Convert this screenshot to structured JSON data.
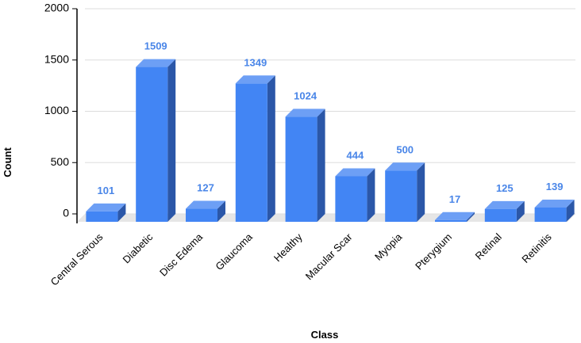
{
  "chart_data": {
    "type": "bar3d",
    "x_label": "Class",
    "y_label": "Count",
    "categories": [
      "Central Serous",
      "Diabetic",
      "Disc Edema",
      "Glaucoma",
      "Healthy",
      "Macular Scar",
      "Myopia",
      "Pterygium",
      "Retinal",
      "Retinitis"
    ],
    "values": [
      101,
      1509,
      127,
      1349,
      1024,
      444,
      500,
      17,
      125,
      139
    ],
    "color": "#4285f4",
    "ylim": [
      0,
      2000
    ],
    "yticks": [
      0,
      500,
      1000,
      1500,
      2000
    ],
    "grid": true
  }
}
